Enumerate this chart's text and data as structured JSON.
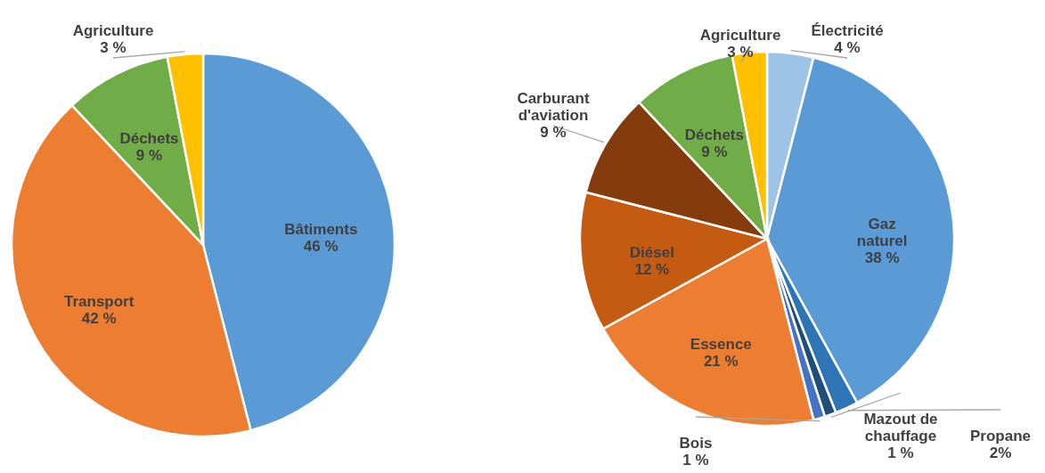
{
  "chart_data": [
    {
      "type": "pie",
      "categories": [
        "Bâtiments",
        "Transport",
        "Déchets",
        "Agriculture"
      ],
      "values": [
        46,
        42,
        9,
        3
      ],
      "colors": [
        "#5b9bd5",
        "#ed7d31",
        "#70ad47",
        "#ffc000"
      ],
      "value_labels": [
        "46 %",
        "42 %",
        "9 %",
        "3 %"
      ]
    },
    {
      "type": "pie",
      "categories": [
        "Électricité",
        "Gaz naturel",
        "Propane",
        "Mazout de chauffage",
        "Bois",
        "Essence",
        "Diésel",
        "Carburant d'aviation",
        "Déchets",
        "Agriculture"
      ],
      "values": [
        4,
        38,
        2,
        1,
        1,
        21,
        12,
        9,
        9,
        3
      ],
      "colors": [
        "#9dc3e6",
        "#5b9bd5",
        "#2e75b6",
        "#1f4e79",
        "#4472c4",
        "#ed7d31",
        "#c55a11",
        "#843c0c",
        "#70ad47",
        "#ffc000"
      ],
      "value_labels": [
        "4 %",
        "38 %",
        "2%",
        "1 %",
        "1 %",
        "21 %",
        "12 %",
        "9 %",
        "9 %",
        "3 %"
      ]
    }
  ]
}
